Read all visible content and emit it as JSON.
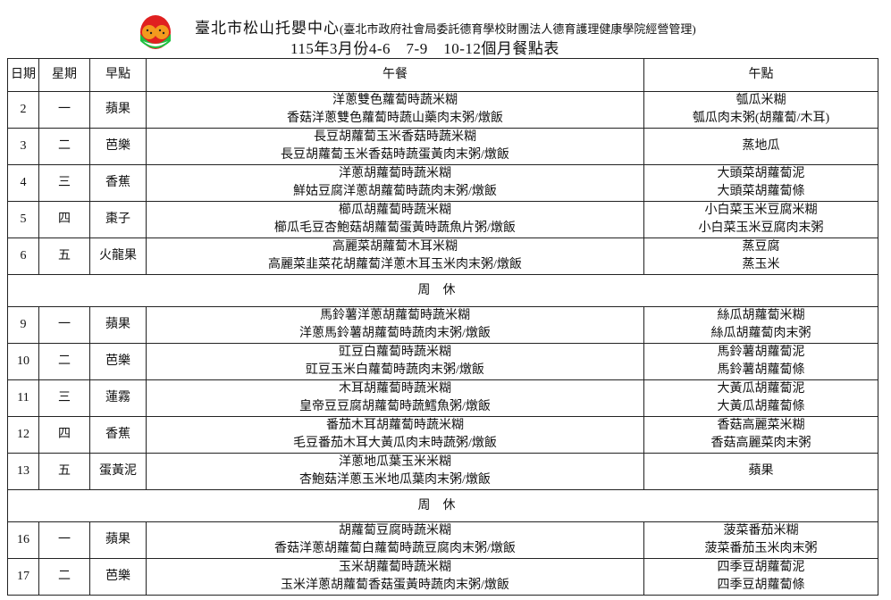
{
  "header": {
    "center_name": "臺北市松山托嬰中心",
    "center_note": "(臺北市政府社會局委託德育學校財團法人德育護理健康學院經營管理)",
    "menu_title": "115年3月份4-6　7-9　10-12個月餐點表"
  },
  "columns": [
    "日期",
    "星期",
    "早點",
    "午餐",
    "午點"
  ],
  "rows": [
    {
      "type": "day",
      "date": "2",
      "weekday": "一",
      "breakfast": "蘋果",
      "lunch": [
        "洋蔥雙色蘿蔔時蔬米糊",
        "香菇洋蔥雙色蘿蔔時蔬山藥肉末粥/燉飯"
      ],
      "snack": [
        "瓠瓜米糊",
        "瓠瓜肉末粥(胡蘿蔔/木耳)"
      ]
    },
    {
      "type": "day",
      "date": "3",
      "weekday": "二",
      "breakfast": "芭樂",
      "lunch": [
        "長豆胡蘿蔔玉米香菇時蔬米糊",
        "長豆胡蘿蔔玉米香菇時蔬蛋黃肉末粥/燉飯"
      ],
      "snack": [
        "蒸地瓜"
      ]
    },
    {
      "type": "day",
      "date": "4",
      "weekday": "三",
      "breakfast": "香蕉",
      "lunch": [
        "洋蔥胡蘿蔔時蔬米糊",
        "鮮姑豆腐洋蔥胡蘿蔔時蔬肉末粥/燉飯"
      ],
      "snack": [
        "大頭菜胡蘿蔔泥",
        "大頭菜胡蘿蔔條"
      ]
    },
    {
      "type": "day",
      "date": "5",
      "weekday": "四",
      "breakfast": "棗子",
      "lunch": [
        "櫛瓜胡蘿蔔時蔬米糊",
        "櫛瓜毛豆杏鮑菇胡蘿蔔蛋黃時蔬魚片粥/燉飯"
      ],
      "snack": [
        "小白菜玉米豆腐米糊",
        "小白菜玉米豆腐肉末粥"
      ]
    },
    {
      "type": "day",
      "date": "6",
      "weekday": "五",
      "breakfast": "火龍果",
      "lunch": [
        "高麗菜胡蘿蔔木耳米糊",
        "高麗菜韭菜花胡蘿蔔洋蔥木耳玉米肉末粥/燉飯"
      ],
      "snack": [
        "蒸豆腐",
        "蒸玉米"
      ]
    },
    {
      "type": "rest",
      "label": "周休"
    },
    {
      "type": "day",
      "date": "9",
      "weekday": "一",
      "breakfast": "蘋果",
      "lunch": [
        "馬鈴薯洋蔥胡蘿蔔時蔬米糊",
        "洋蔥馬鈴薯胡蘿蔔時蔬肉末粥/燉飯"
      ],
      "snack": [
        "絲瓜胡蘿蔔米糊",
        "絲瓜胡蘿蔔肉末粥"
      ]
    },
    {
      "type": "day",
      "date": "10",
      "weekday": "二",
      "breakfast": "芭樂",
      "lunch": [
        "豇豆白蘿蔔時蔬米糊",
        "豇豆玉米白蘿蔔時蔬肉末粥/燉飯"
      ],
      "snack": [
        "馬鈴薯胡蘿蔔泥",
        "馬鈴薯胡蘿蔔條"
      ]
    },
    {
      "type": "day",
      "date": "11",
      "weekday": "三",
      "breakfast": "蓮霧",
      "lunch": [
        "木耳胡蘿蔔時蔬米糊",
        "皇帝豆豆腐胡蘿蔔時蔬鱈魚粥/燉飯"
      ],
      "snack": [
        "大黃瓜胡蘿蔔泥",
        "大黃瓜胡蘿蔔條"
      ]
    },
    {
      "type": "day",
      "date": "12",
      "weekday": "四",
      "breakfast": "香蕉",
      "lunch": [
        "番茄木耳胡蘿蔔時蔬米糊",
        "毛豆番茄木耳大黃瓜肉末時蔬粥/燉飯"
      ],
      "snack": [
        "香菇高麗菜米糊",
        "香菇高麗菜肉末粥"
      ]
    },
    {
      "type": "day",
      "date": "13",
      "weekday": "五",
      "breakfast": "蛋黃泥",
      "lunch": [
        "洋蔥地瓜葉玉米米糊",
        "杏鮑菇洋蔥玉米地瓜葉肉末粥/燉飯"
      ],
      "snack": [
        "蘋果"
      ]
    },
    {
      "type": "rest",
      "label": "周休"
    },
    {
      "type": "day",
      "date": "16",
      "weekday": "一",
      "breakfast": "蘋果",
      "lunch": [
        "胡蘿蔔豆腐時蔬米糊",
        "香菇洋蔥胡蘿蔔白蘿蔔時蔬豆腐肉末粥/燉飯"
      ],
      "snack": [
        "菠菜番茄米糊",
        "菠菜番茄玉米肉末粥"
      ]
    },
    {
      "type": "day",
      "date": "17",
      "weekday": "二",
      "breakfast": "芭樂",
      "lunch": [
        "玉米胡蘿蔔時蔬米糊",
        "玉米洋蔥胡蘿蔔香菇蛋黃時蔬肉末粥/燉飯"
      ],
      "snack": [
        "四季豆胡蘿蔔泥",
        "四季豆胡蘿蔔條"
      ]
    }
  ]
}
